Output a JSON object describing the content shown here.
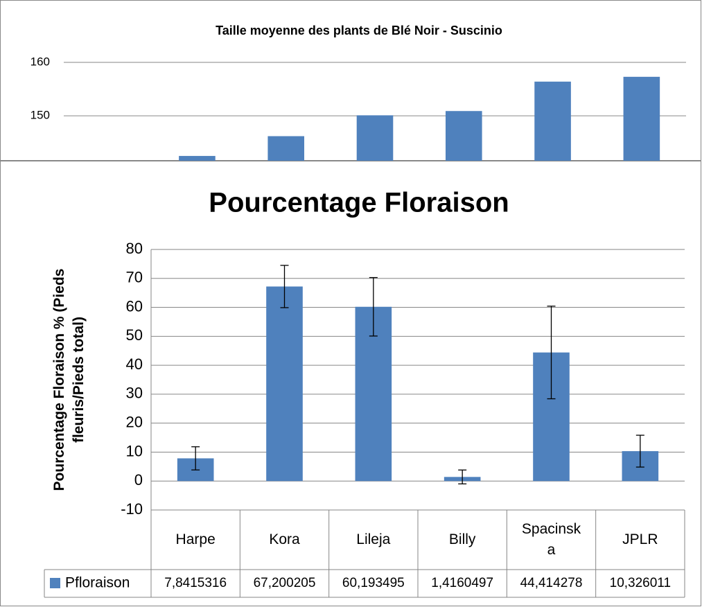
{
  "chart_data": [
    {
      "type": "bar",
      "title": "Taille moyenne des plants de Blé Noir - Suscinio",
      "categories": [
        null,
        null,
        null,
        null,
        null,
        null,
        null
      ],
      "values": [
        null,
        142.5,
        146.2,
        150.1,
        150.9,
        156.4,
        157.3
      ],
      "color": "#4f81bd",
      "ylim": [
        141.6,
        160
      ],
      "yticks": [
        150,
        160
      ],
      "grid": true
    },
    {
      "type": "bar",
      "title": "Pourcentage Floraison",
      "y_label": "Pourcentage Floraison % (Pieds fleuris/Pieds total)",
      "categories": [
        "Harpe",
        "Kora",
        "Lileja",
        "Billy",
        "Spacinska",
        "JPLR"
      ],
      "series": [
        {
          "name": "Pfloraison",
          "color": "#4f81bd",
          "values": [
            7.8415316,
            67.200205,
            60.193495,
            1.4160497,
            44.414278,
            10.326011
          ],
          "value_labels": [
            "7,8415316",
            "67,200205",
            "60,193495",
            "1,4160497",
            "44,414278",
            "10,326011"
          ],
          "errors": [
            4,
            7.3,
            10.1,
            2.4,
            16,
            5.5
          ]
        }
      ],
      "ylim": [
        -10,
        80
      ],
      "yticks": [
        -10,
        0,
        10,
        20,
        30,
        40,
        50,
        60,
        70,
        80
      ],
      "grid": true,
      "data_table": true
    }
  ]
}
